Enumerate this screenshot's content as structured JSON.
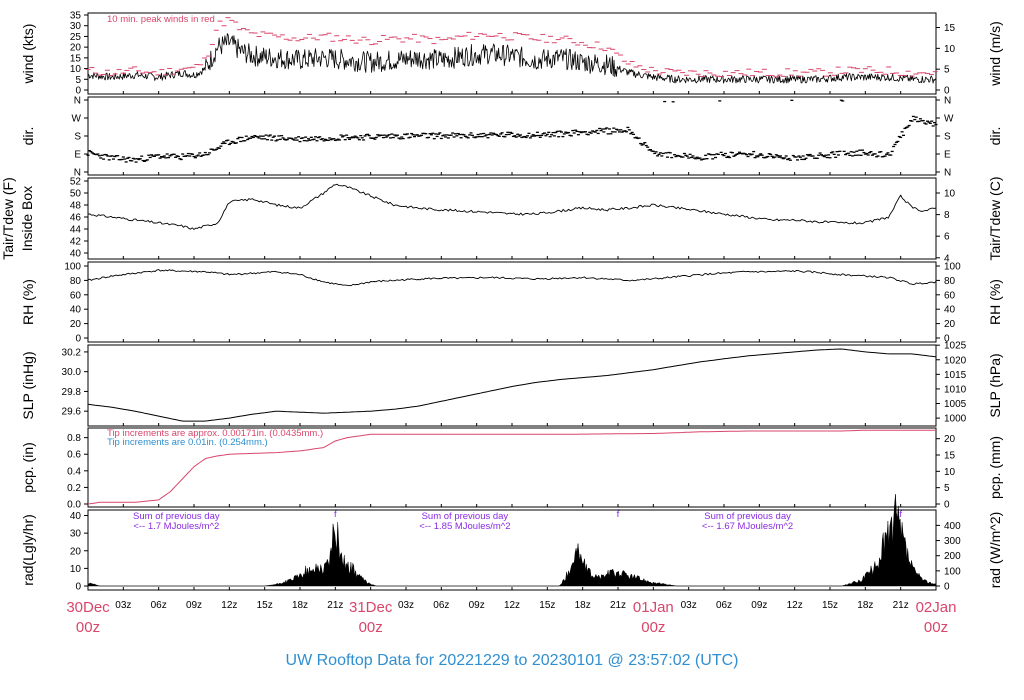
{
  "title": "UW Rooftop Data for 20221229  to  20230101 @ 23:57:02  (UTC)",
  "colors": {
    "title": "#2f8fd0",
    "day": "#d9466b",
    "peak": "#d9466b",
    "pcp_main": "#d9466b",
    "pcp_note2": "#2f8fd0",
    "rad_note": "#8a2be2",
    "line": "#000000"
  },
  "x_axis": {
    "hour_ticks": [
      "03z",
      "06z",
      "09z",
      "12z",
      "15z",
      "18z",
      "21z",
      "03z",
      "06z",
      "09z",
      "12z",
      "15z",
      "18z",
      "21z",
      "03z",
      "06z",
      "09z",
      "12z",
      "15z",
      "18z",
      "21z"
    ],
    "day_labels": [
      {
        "date": "30Dec",
        "hour": "00z"
      },
      {
        "date": "31Dec",
        "hour": "00z"
      },
      {
        "date": "01Jan",
        "hour": "00z"
      },
      {
        "date": "02Jan",
        "hour": "00z"
      }
    ],
    "range_hours": [
      0,
      72
    ]
  },
  "panels": {
    "wind": {
      "left_label": "wind (kts)",
      "right_label": "wind (m/s)",
      "left_ticks": [
        "0",
        "5",
        "10",
        "15",
        "20",
        "25",
        "30",
        "35"
      ],
      "right_ticks": [
        "0",
        "5",
        "10",
        "15"
      ],
      "note": "10 min. peak winds in red"
    },
    "dir": {
      "left_label": "dir.",
      "right_label": "dir.",
      "ticks": [
        "N",
        "E",
        "S",
        "W",
        "N"
      ]
    },
    "temp": {
      "left_label_1": "Tair/Tdew (F)",
      "left_label_2": "Inside Box",
      "right_label": "Tair/Tdew (C)",
      "left_ticks": [
        "40",
        "42",
        "44",
        "46",
        "48",
        "50",
        "52"
      ],
      "right_ticks": [
        "4",
        "6",
        "8",
        "10"
      ]
    },
    "rh": {
      "left_label": "RH (%)",
      "right_label": "RH (%)",
      "ticks": [
        "0",
        "20",
        "40",
        "60",
        "80",
        "100"
      ]
    },
    "slp": {
      "left_label": "SLP (inHg)",
      "right_label": "SLP (hPa)",
      "left_ticks": [
        "29.6",
        "29.8",
        "30.0",
        "30.2"
      ],
      "right_ticks": [
        "1000",
        "1005",
        "1010",
        "1015",
        "1020",
        "1025"
      ]
    },
    "pcp": {
      "left_label": "pcp. (in)",
      "right_label": "pcp. (mm)",
      "left_ticks": [
        "0.0",
        "0.2",
        "0.4",
        "0.6",
        "0.8"
      ],
      "right_ticks": [
        "0",
        "5",
        "10",
        "15",
        "20"
      ],
      "note1": "Tip increments are approx. 0.00171in. (0.0435mm.)",
      "note2": "Tip increments are 0.01in. (0.254mm.)"
    },
    "rad": {
      "left_label": "rad(Lgly/hr)",
      "right_label": "rad (W/m^2)",
      "left_ticks": [
        "0",
        "10",
        "20",
        "30",
        "40"
      ],
      "right_ticks": [
        "0",
        "100",
        "200",
        "300",
        "400"
      ],
      "notes": [
        {
          "line1": "Sum of previous day",
          "line2": "<-- 1.7 MJoules/m^2"
        },
        {
          "line1": "Sum of previous day",
          "line2": "<-- 1.85 MJoules/m^2"
        },
        {
          "line1": "Sum of previous day",
          "line2": "<-- 1.67 MJoules/m^2"
        }
      ],
      "markers": [
        "f",
        "f",
        "f"
      ]
    }
  },
  "chart_data": [
    {
      "type": "line",
      "name": "wind",
      "x": [
        0,
        2,
        4,
        6,
        8,
        9,
        10,
        10.5,
        11,
        12,
        13,
        14,
        16,
        18,
        20,
        22,
        24,
        26,
        28,
        30,
        32,
        34,
        36,
        38,
        40,
        42,
        44,
        46,
        48,
        50,
        52,
        54,
        56,
        58,
        60,
        62,
        64,
        66,
        68,
        70,
        72
      ],
      "series": [
        {
          "name": "",
          "values": [
            7,
            6,
            7,
            6,
            8,
            7,
            10,
            15,
            20,
            22,
            18,
            16,
            15,
            14,
            15,
            14,
            13,
            14,
            15,
            14,
            16,
            17,
            16,
            14,
            15,
            13,
            12,
            8,
            6,
            5,
            5,
            5,
            5,
            5,
            5,
            5,
            6,
            6,
            6,
            5,
            5
          ]
        },
        {
          "name": "10 min. peak winds",
          "values": [
            9,
            8,
            9,
            8,
            10,
            10,
            14,
            22,
            30,
            33,
            28,
            26,
            25,
            24,
            25,
            24,
            23,
            24,
            24,
            23,
            25,
            26,
            25,
            24,
            24,
            22,
            20,
            12,
            9,
            8,
            8,
            8,
            8,
            8,
            8,
            8,
            9,
            9,
            9,
            8,
            8
          ]
        }
      ],
      "ylim": [
        0,
        35
      ]
    },
    {
      "type": "scatter",
      "name": "dir",
      "x": [
        0,
        2,
        4,
        6,
        8,
        10,
        12,
        14,
        16,
        18,
        20,
        22,
        24,
        26,
        28,
        30,
        32,
        34,
        36,
        38,
        40,
        42,
        44,
        46,
        48,
        50,
        52,
        54,
        56,
        58,
        60,
        62,
        64,
        66,
        68,
        70,
        72
      ],
      "values": [
        95,
        70,
        60,
        80,
        75,
        90,
        150,
        175,
        170,
        165,
        170,
        175,
        175,
        180,
        180,
        182,
        180,
        185,
        185,
        185,
        190,
        200,
        205,
        210,
        90,
        80,
        75,
        85,
        90,
        80,
        70,
        80,
        90,
        100,
        80,
        270,
        240
      ],
      "ylim": [
        360,
        0
      ]
    },
    {
      "type": "line",
      "name": "temp",
      "x": [
        0,
        2,
        4,
        6,
        8,
        9,
        10,
        11,
        12,
        14,
        16,
        18,
        20,
        21,
        22,
        24,
        26,
        28,
        30,
        32,
        34,
        36,
        38,
        40,
        42,
        44,
        46,
        48,
        50,
        52,
        54,
        56,
        58,
        60,
        62,
        64,
        66,
        68,
        69,
        70,
        71,
        72
      ],
      "values": [
        46.5,
        46,
        45.5,
        45,
        44.5,
        44,
        44.5,
        45,
        48.5,
        49,
        48,
        47.5,
        50,
        51.5,
        51,
        49.5,
        48,
        47.5,
        47.2,
        47,
        46.8,
        46.5,
        46.5,
        47,
        47.5,
        47.2,
        47.5,
        48,
        47.5,
        47,
        46.5,
        46,
        45.5,
        45.5,
        45.2,
        45,
        45,
        46,
        49.5,
        47.5,
        47,
        47.5
      ],
      "ylim": [
        39,
        52.5
      ]
    },
    {
      "type": "line",
      "name": "rh",
      "x": [
        0,
        2,
        4,
        6,
        8,
        10,
        12,
        14,
        16,
        18,
        20,
        22,
        24,
        26,
        28,
        30,
        32,
        34,
        36,
        38,
        40,
        42,
        44,
        46,
        48,
        50,
        52,
        54,
        56,
        58,
        60,
        62,
        64,
        66,
        68,
        70,
        72
      ],
      "values": [
        80,
        86,
        90,
        94,
        93,
        92,
        88,
        90,
        92,
        88,
        78,
        72,
        78,
        80,
        82,
        83,
        83,
        84,
        83,
        82,
        83,
        84,
        82,
        80,
        82,
        85,
        88,
        90,
        92,
        92,
        93,
        91,
        88,
        86,
        84,
        75,
        78
      ],
      "ylim": [
        0,
        100
      ]
    },
    {
      "type": "line",
      "name": "slp",
      "x": [
        0,
        2,
        4,
        6,
        8,
        10,
        12,
        14,
        16,
        18,
        20,
        22,
        24,
        26,
        28,
        30,
        32,
        34,
        36,
        38,
        40,
        42,
        44,
        46,
        48,
        50,
        52,
        54,
        56,
        58,
        60,
        62,
        64,
        66,
        68,
        70,
        72
      ],
      "values": [
        29.67,
        29.64,
        29.6,
        29.55,
        29.5,
        29.5,
        29.53,
        29.57,
        29.6,
        29.59,
        29.58,
        29.59,
        29.6,
        29.62,
        29.65,
        29.7,
        29.75,
        29.8,
        29.85,
        29.89,
        29.92,
        29.94,
        29.96,
        29.99,
        30.02,
        30.06,
        30.1,
        30.13,
        30.16,
        30.18,
        30.2,
        30.22,
        30.23,
        30.2,
        30.18,
        30.18,
        30.15
      ],
      "ylim": [
        29.45,
        30.27
      ]
    },
    {
      "type": "line",
      "name": "pcp",
      "x": [
        0,
        1,
        4,
        6,
        7,
        8,
        9,
        10,
        11,
        12,
        14,
        16,
        18,
        19,
        20,
        21,
        22,
        24,
        26,
        28,
        30,
        32,
        34,
        36,
        38,
        40,
        48,
        50,
        52,
        56,
        60,
        64,
        66,
        68,
        72
      ],
      "values": [
        0,
        0.02,
        0.02,
        0.05,
        0.15,
        0.3,
        0.45,
        0.55,
        0.58,
        0.6,
        0.61,
        0.62,
        0.64,
        0.66,
        0.68,
        0.76,
        0.8,
        0.84,
        0.84,
        0.84,
        0.84,
        0.84,
        0.84,
        0.84,
        0.84,
        0.84,
        0.85,
        0.86,
        0.87,
        0.88,
        0.88,
        0.88,
        0.89,
        0.89,
        0.89
      ],
      "ylim": [
        0,
        0.88
      ]
    },
    {
      "type": "area",
      "name": "rad",
      "x": [
        0,
        0.5,
        1,
        15,
        16,
        17,
        18,
        18.5,
        19,
        19.5,
        20,
        20.5,
        21,
        21.5,
        22,
        22.5,
        23,
        23.5,
        24,
        24.5,
        40,
        40.5,
        41,
        41.5,
        42,
        42.5,
        43,
        43.5,
        44,
        45,
        46,
        47,
        48,
        49,
        50,
        64,
        65,
        65.5,
        66,
        66.5,
        67,
        67.5,
        68,
        68.5,
        69,
        69.5,
        70,
        70.5,
        71,
        71.5,
        72
      ],
      "values": [
        1.5,
        1,
        0,
        0,
        1,
        3,
        6,
        9,
        8,
        12,
        10,
        16,
        35,
        18,
        12,
        10,
        6,
        3,
        1,
        0,
        0,
        4,
        12,
        22,
        14,
        8,
        6,
        5,
        7,
        8,
        6,
        4,
        2,
        1,
        0,
        0,
        2,
        3,
        6,
        9,
        12,
        25,
        30,
        42,
        32,
        20,
        10,
        6,
        3,
        2,
        1
      ],
      "ylim": [
        0,
        42
      ]
    }
  ]
}
